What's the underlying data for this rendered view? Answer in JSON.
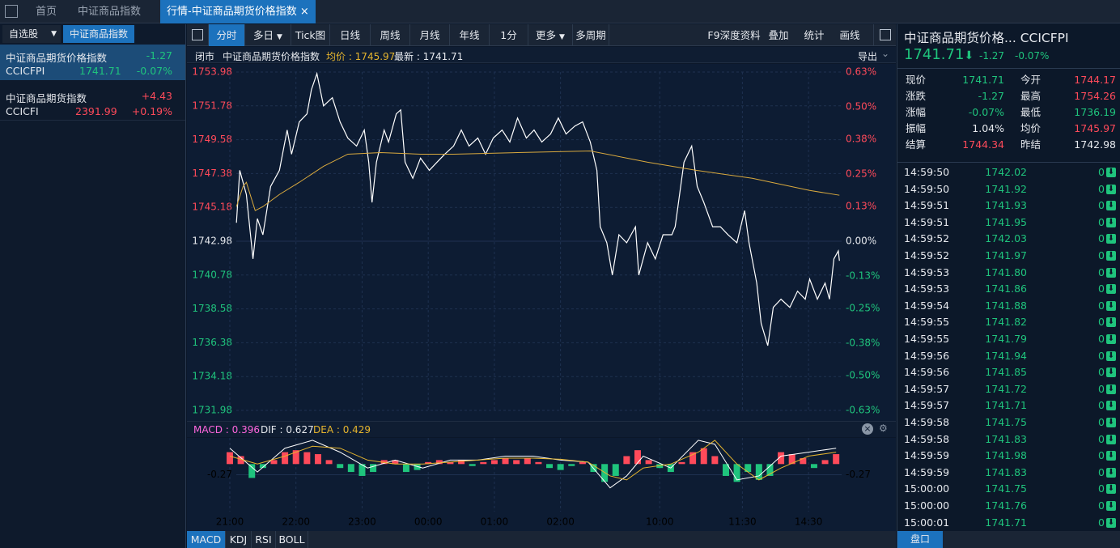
{
  "tabs": [
    "首页",
    "中证商品指数",
    "行情-中证商品期货价格指数"
  ],
  "sidebar": {
    "buttons": [
      "自选股",
      "中证商品指数"
    ],
    "items": [
      {
        "name": "中证商品期货价格指数",
        "change": "-1.27",
        "code": "CCICFPI",
        "price": "1741.71",
        "pct": "-0.07%"
      },
      {
        "name": "中证商品期货指数",
        "change": "+4.43",
        "code": "CCICFI",
        "price": "2391.99",
        "pct": "+0.19%"
      }
    ]
  },
  "toolbar": {
    "left": [
      "分时",
      "多日",
      "Tick图",
      "日线",
      "周线",
      "月线",
      "年线",
      "1分",
      "更多",
      "多周期"
    ],
    "right": [
      "F9深度资料",
      "叠加",
      "统计",
      "画线"
    ]
  },
  "info": {
    "status": "闭市",
    "name": "中证商品期货价格指数",
    "avg": "均价 : 1745.97",
    "last": "最新 : 1741.71",
    "export": "导出"
  },
  "chart_data": {
    "type": "line",
    "xlim": [
      0,
      555
    ],
    "xticks": [
      {
        "value": 0,
        "label": "21:00"
      },
      {
        "value": 60,
        "label": "22:00"
      },
      {
        "value": 120,
        "label": "23:00"
      },
      {
        "value": 180,
        "label": "00:00"
      },
      {
        "value": 240,
        "label": "01:00"
      },
      {
        "value": 300,
        "label": "02:00"
      },
      {
        "value": 390,
        "label": "10:00"
      },
      {
        "value": 465,
        "label": "11:30"
      },
      {
        "value": 525,
        "label": "14:30"
      }
    ],
    "ylim": [
      1731.98,
      1753.98
    ],
    "yticks": [
      1753.98,
      1751.78,
      1749.58,
      1747.38,
      1745.18,
      1742.98,
      1740.78,
      1738.58,
      1736.38,
      1734.18,
      1731.98
    ],
    "y2lim": [
      -0.63,
      0.63
    ],
    "y2ticks": [
      {
        "value": 0.63,
        "label": "0.63%"
      },
      {
        "value": 0.5,
        "label": "0.50%"
      },
      {
        "value": 0.38,
        "label": "0.38%"
      },
      {
        "value": 0.25,
        "label": "0.25%"
      },
      {
        "value": 0.13,
        "label": "0.13%"
      },
      {
        "value": 0,
        "label": "0.00%"
      },
      {
        "value": -0.13,
        "label": "-0.13%"
      },
      {
        "value": -0.25,
        "label": "-0.25%"
      },
      {
        "value": -0.38,
        "label": "-0.38%"
      },
      {
        "value": -0.5,
        "label": "-0.50%"
      },
      {
        "value": -0.63,
        "label": "-0.63%"
      }
    ],
    "grid": true,
    "series": [
      {
        "color": "#ffffff",
        "x": [
          6,
          9,
          15,
          21,
          25,
          30,
          37,
          45,
          52,
          56,
          63,
          70,
          74,
          79,
          85,
          93,
          100,
          107,
          115,
          122,
          126,
          129,
          133,
          140,
          144,
          151,
          155,
          159,
          166,
          173,
          181,
          188,
          195,
          203,
          210,
          217,
          225,
          232,
          239,
          247,
          254,
          261,
          269,
          276,
          283,
          291,
          298,
          305,
          313,
          320,
          327,
          333,
          336,
          342,
          347,
          353,
          360,
          368,
          371,
          379,
          386,
          393,
          401,
          404,
          408,
          412,
          419,
          424,
          430,
          438,
          445,
          452,
          460,
          467,
          471,
          478,
          482,
          488,
          493,
          500,
          508,
          515,
          522,
          526,
          533,
          540,
          544,
          548,
          552,
          553
        ],
        "values": [
          1744.18,
          1747.59,
          1746.02,
          1741.83,
          1744.45,
          1743.4,
          1746.54,
          1747.59,
          1750.21,
          1748.64,
          1750.74,
          1751.26,
          1752.83,
          1753.88,
          1751.78,
          1752.31,
          1750.74,
          1749.69,
          1749.17,
          1750.21,
          1748.12,
          1745.5,
          1748.12,
          1750.21,
          1749.43,
          1751.26,
          1751.52,
          1748.12,
          1747.07,
          1748.38,
          1747.59,
          1748.12,
          1748.64,
          1749.17,
          1750.21,
          1749.17,
          1749.69,
          1748.64,
          1749.69,
          1750.21,
          1749.43,
          1750.99,
          1749.69,
          1750.21,
          1749.43,
          1749.95,
          1750.99,
          1749.95,
          1750.47,
          1750.74,
          1749.43,
          1747.59,
          1743.92,
          1742.88,
          1740.78,
          1743.4,
          1742.88,
          1743.92,
          1740.78,
          1742.88,
          1741.83,
          1743.4,
          1743.4,
          1743.92,
          1746.02,
          1748.12,
          1749.17,
          1746.54,
          1745.5,
          1743.92,
          1743.92,
          1743.4,
          1742.88,
          1744.97,
          1742.88,
          1740.26,
          1737.64,
          1736.19,
          1738.68,
          1739.21,
          1738.68,
          1739.73,
          1739.21,
          1740.52,
          1739.21,
          1740.26,
          1739.21,
          1741.83,
          1742.35,
          1741.71
        ]
      },
      {
        "color": "#d9a93e",
        "x": [
          6,
          12,
          15,
          23,
          30,
          45,
          63,
          85,
          107,
          137,
          173,
          203,
          261,
          327,
          379,
          423,
          474,
          526,
          553
        ],
        "values": [
          1745.23,
          1746.54,
          1746.81,
          1744.97,
          1745.23,
          1746.02,
          1746.81,
          1747.85,
          1748.64,
          1748.74,
          1748.64,
          1748.64,
          1748.74,
          1748.85,
          1748.12,
          1747.59,
          1747.07,
          1746.28,
          1745.97
        ]
      }
    ]
  },
  "macd": {
    "legend": [
      "MACD : 0.396",
      "DIF : 0.627",
      "DEA : 0.429"
    ],
    "ylim": [
      -1.2,
      0.66
    ],
    "yticks": [
      -0.27
    ],
    "up_color": "#ff4a5a",
    "down_color": "#1fc47d",
    "bars_x": [
      0,
      10,
      20,
      30,
      40,
      50,
      60,
      70,
      80,
      90,
      100,
      110,
      120,
      130,
      140,
      150,
      160,
      170,
      180,
      190,
      200,
      210,
      220,
      230,
      240,
      250,
      260,
      270,
      280,
      290,
      300,
      310,
      320,
      330,
      340,
      350,
      360,
      370,
      380,
      390,
      400,
      410,
      420,
      430,
      440,
      450,
      460,
      470,
      480,
      490,
      500,
      510,
      520,
      530,
      540,
      550
    ],
    "bars": [
      0.3,
      0.2,
      -0.35,
      -0.1,
      0.1,
      0.3,
      0.35,
      0.3,
      0.25,
      0.1,
      -0.1,
      -0.2,
      -0.3,
      -0.2,
      0.1,
      0.1,
      -0.2,
      -0.15,
      0.05,
      0.1,
      0.05,
      0.1,
      -0.05,
      0.05,
      0.1,
      0.15,
      0.1,
      0.15,
      0.05,
      -0.1,
      -0.15,
      -0.05,
      0.05,
      -0.2,
      -0.45,
      -0.3,
      0.2,
      0.35,
      0.1,
      -0.1,
      -0.2,
      0.05,
      0.3,
      0.4,
      0.2,
      -0.3,
      -0.45,
      -0.2,
      -0.4,
      -0.3,
      0.3,
      0.25,
      0.15,
      -0.1,
      0.1,
      0.25
    ],
    "lines_x": [
      0,
      25,
      50,
      75,
      100,
      125,
      150,
      175,
      200,
      225,
      250,
      275,
      300,
      325,
      345,
      360,
      375,
      400,
      425,
      440,
      460,
      480,
      500,
      525,
      550
    ],
    "dif": {
      "color": "#ffffff",
      "values": [
        0.4,
        -0.2,
        0.4,
        0.6,
        0.3,
        -0.1,
        0.1,
        -0.1,
        0.1,
        0.1,
        0.2,
        0.2,
        0.1,
        0.05,
        -0.6,
        -0.3,
        0.2,
        -0.1,
        0.6,
        0.5,
        -0.4,
        -0.3,
        0.2,
        0.3,
        0.4
      ]
    },
    "dea": {
      "color": "#e6b52e",
      "values": [
        0.2,
        0,
        0.2,
        0.45,
        0.4,
        0.1,
        0,
        0,
        0.05,
        0.1,
        0.15,
        0.15,
        0.12,
        0.05,
        -0.3,
        -0.4,
        -0.1,
        0,
        0.3,
        0.6,
        0,
        -0.4,
        -0.1,
        0.2,
        0.3
      ]
    }
  },
  "indicator_tabs": [
    "MACD",
    "KDJ",
    "RSI",
    "BOLL"
  ],
  "quote": {
    "title": "中证商品期货价格... CCICFPI",
    "price": "1741.71",
    "change": "-1.27",
    "pct": "-0.07%",
    "fields": [
      [
        "现价",
        "1741.71",
        "今开",
        "1744.17"
      ],
      [
        "涨跌",
        "-1.27",
        "最高",
        "1754.26"
      ],
      [
        "涨幅",
        "-0.07%",
        "最低",
        "1736.19"
      ],
      [
        "振幅",
        "1.04%",
        "均价",
        "1745.97"
      ],
      [
        "结算",
        "1744.34",
        "昨结",
        "1742.98"
      ]
    ]
  },
  "ticks": [
    [
      "14:59:50",
      "1742.02",
      "0"
    ],
    [
      "14:59:50",
      "1741.92",
      "0"
    ],
    [
      "14:59:51",
      "1741.93",
      "0"
    ],
    [
      "14:59:51",
      "1741.95",
      "0"
    ],
    [
      "14:59:52",
      "1742.03",
      "0"
    ],
    [
      "14:59:52",
      "1741.97",
      "0"
    ],
    [
      "14:59:53",
      "1741.80",
      "0"
    ],
    [
      "14:59:53",
      "1741.86",
      "0"
    ],
    [
      "14:59:54",
      "1741.88",
      "0"
    ],
    [
      "14:59:55",
      "1741.82",
      "0"
    ],
    [
      "14:59:55",
      "1741.79",
      "0"
    ],
    [
      "14:59:56",
      "1741.94",
      "0"
    ],
    [
      "14:59:56",
      "1741.85",
      "0"
    ],
    [
      "14:59:57",
      "1741.72",
      "0"
    ],
    [
      "14:59:57",
      "1741.71",
      "0"
    ],
    [
      "14:59:58",
      "1741.75",
      "0"
    ],
    [
      "14:59:58",
      "1741.83",
      "0"
    ],
    [
      "14:59:59",
      "1741.98",
      "0"
    ],
    [
      "14:59:59",
      "1741.83",
      "0"
    ],
    [
      "15:00:00",
      "1741.75",
      "0"
    ],
    [
      "15:00:00",
      "1741.76",
      "0"
    ],
    [
      "15:00:01",
      "1741.71",
      "0"
    ]
  ],
  "panel_button": "盘口"
}
